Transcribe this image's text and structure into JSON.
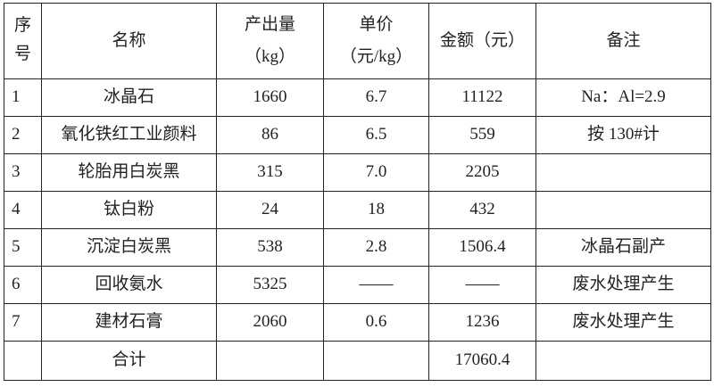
{
  "headers": {
    "index": "序号",
    "name": "名称",
    "output": "产出量（kg）",
    "unit_price": "单价（元/kg）",
    "amount": "金额（元）",
    "remark": "备注"
  },
  "rows": [
    {
      "index": "1",
      "name": "冰晶石",
      "output": "1660",
      "unit_price": "6.7",
      "amount": "11122",
      "remark": "Na：Al=2.9"
    },
    {
      "index": "2",
      "name": "氧化铁红工业颜料",
      "output": "86",
      "unit_price": "6.5",
      "amount": "559",
      "remark": "按 130#计"
    },
    {
      "index": "3",
      "name": "轮胎用白炭黑",
      "output": "315",
      "unit_price": "7.0",
      "amount": "2205",
      "remark": ""
    },
    {
      "index": "4",
      "name": "钛白粉",
      "output": "24",
      "unit_price": "18",
      "amount": "432",
      "remark": ""
    },
    {
      "index": "5",
      "name": "沉淀白炭黑",
      "output": "538",
      "unit_price": "2.8",
      "amount": "1506.4",
      "remark": "冰晶石副产"
    },
    {
      "index": "6",
      "name": "回收氨水",
      "output": "5325",
      "unit_price": "——",
      "amount": "——",
      "remark": "废水处理产生"
    },
    {
      "index": "7",
      "name": "建材石膏",
      "output": "2060",
      "unit_price": "0.6",
      "amount": "1236",
      "remark": "废水处理产生"
    }
  ],
  "total": {
    "label": "合计",
    "amount": "17060.4"
  }
}
